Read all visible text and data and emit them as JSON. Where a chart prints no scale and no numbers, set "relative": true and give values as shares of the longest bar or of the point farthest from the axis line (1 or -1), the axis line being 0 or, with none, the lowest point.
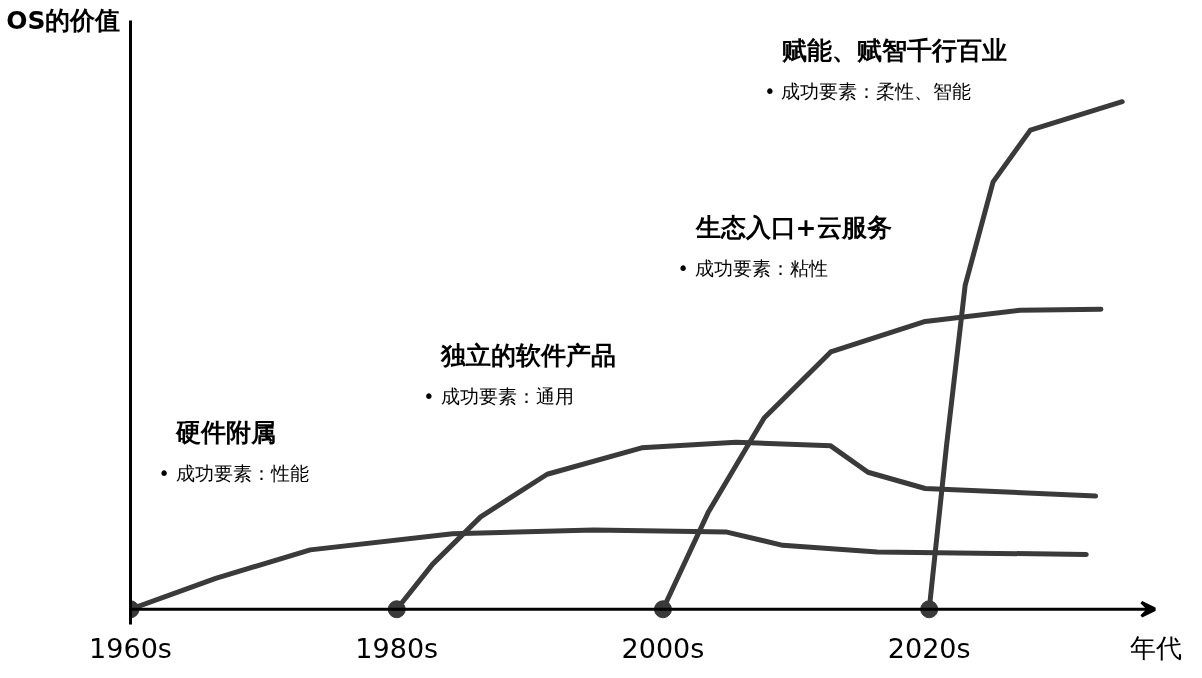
{
  "chart_data": {
    "type": "line",
    "relative": true,
    "xlabel": "年代",
    "ylabel": "OS的价值",
    "xlim": [
      1960,
      2037
    ],
    "xticks": [
      {
        "value": 1960,
        "label": "1960s"
      },
      {
        "value": 1980,
        "label": "1980s"
      },
      {
        "value": 2000,
        "label": "2000s"
      },
      {
        "value": 2020,
        "label": "2020s"
      }
    ],
    "grid": false,
    "series": [
      {
        "color": "#3a3a3a",
        "x": [
          1960,
          1966.4,
          1973.5,
          1984.2,
          1994.8,
          2004.8,
          2009,
          2016.1,
          2031.8
        ],
        "values": [
          0,
          0.061,
          0.117,
          0.149,
          0.156,
          0.152,
          0.126,
          0.113,
          0.108
        ]
      },
      {
        "color": "#3a3a3a",
        "x": [
          1980,
          1982.7,
          1986.3,
          1991.3,
          1998.4,
          2005.5,
          2012.6,
          2015.4,
          2019.7,
          2032.5
        ],
        "values": [
          0,
          0.089,
          0.182,
          0.266,
          0.318,
          0.329,
          0.322,
          0.27,
          0.238,
          0.223
        ]
      },
      {
        "color": "#3a3a3a",
        "x": [
          2000,
          2003.4,
          2007.6,
          2012.6,
          2019.7,
          2026.8,
          2032.9
        ],
        "values": [
          0,
          0.191,
          0.377,
          0.507,
          0.567,
          0.589,
          0.591
        ]
      },
      {
        "color": "#3a3a3a",
        "x": [
          2020,
          2021.3,
          2022.7,
          2024.8,
          2027.6,
          2034.5
        ],
        "values": [
          0,
          0.322,
          0.638,
          0.842,
          0.944,
          1.0
        ]
      }
    ],
    "annotations": [
      "硬件附属\n•   成功要素：性能",
      "独立的软件产品\n•   成功要素：通用",
      "生态入口+云服务\n•   成功要素：粘性",
      "赋能、赋智千行百业\n•   成功要素：柔性、智能"
    ]
  }
}
